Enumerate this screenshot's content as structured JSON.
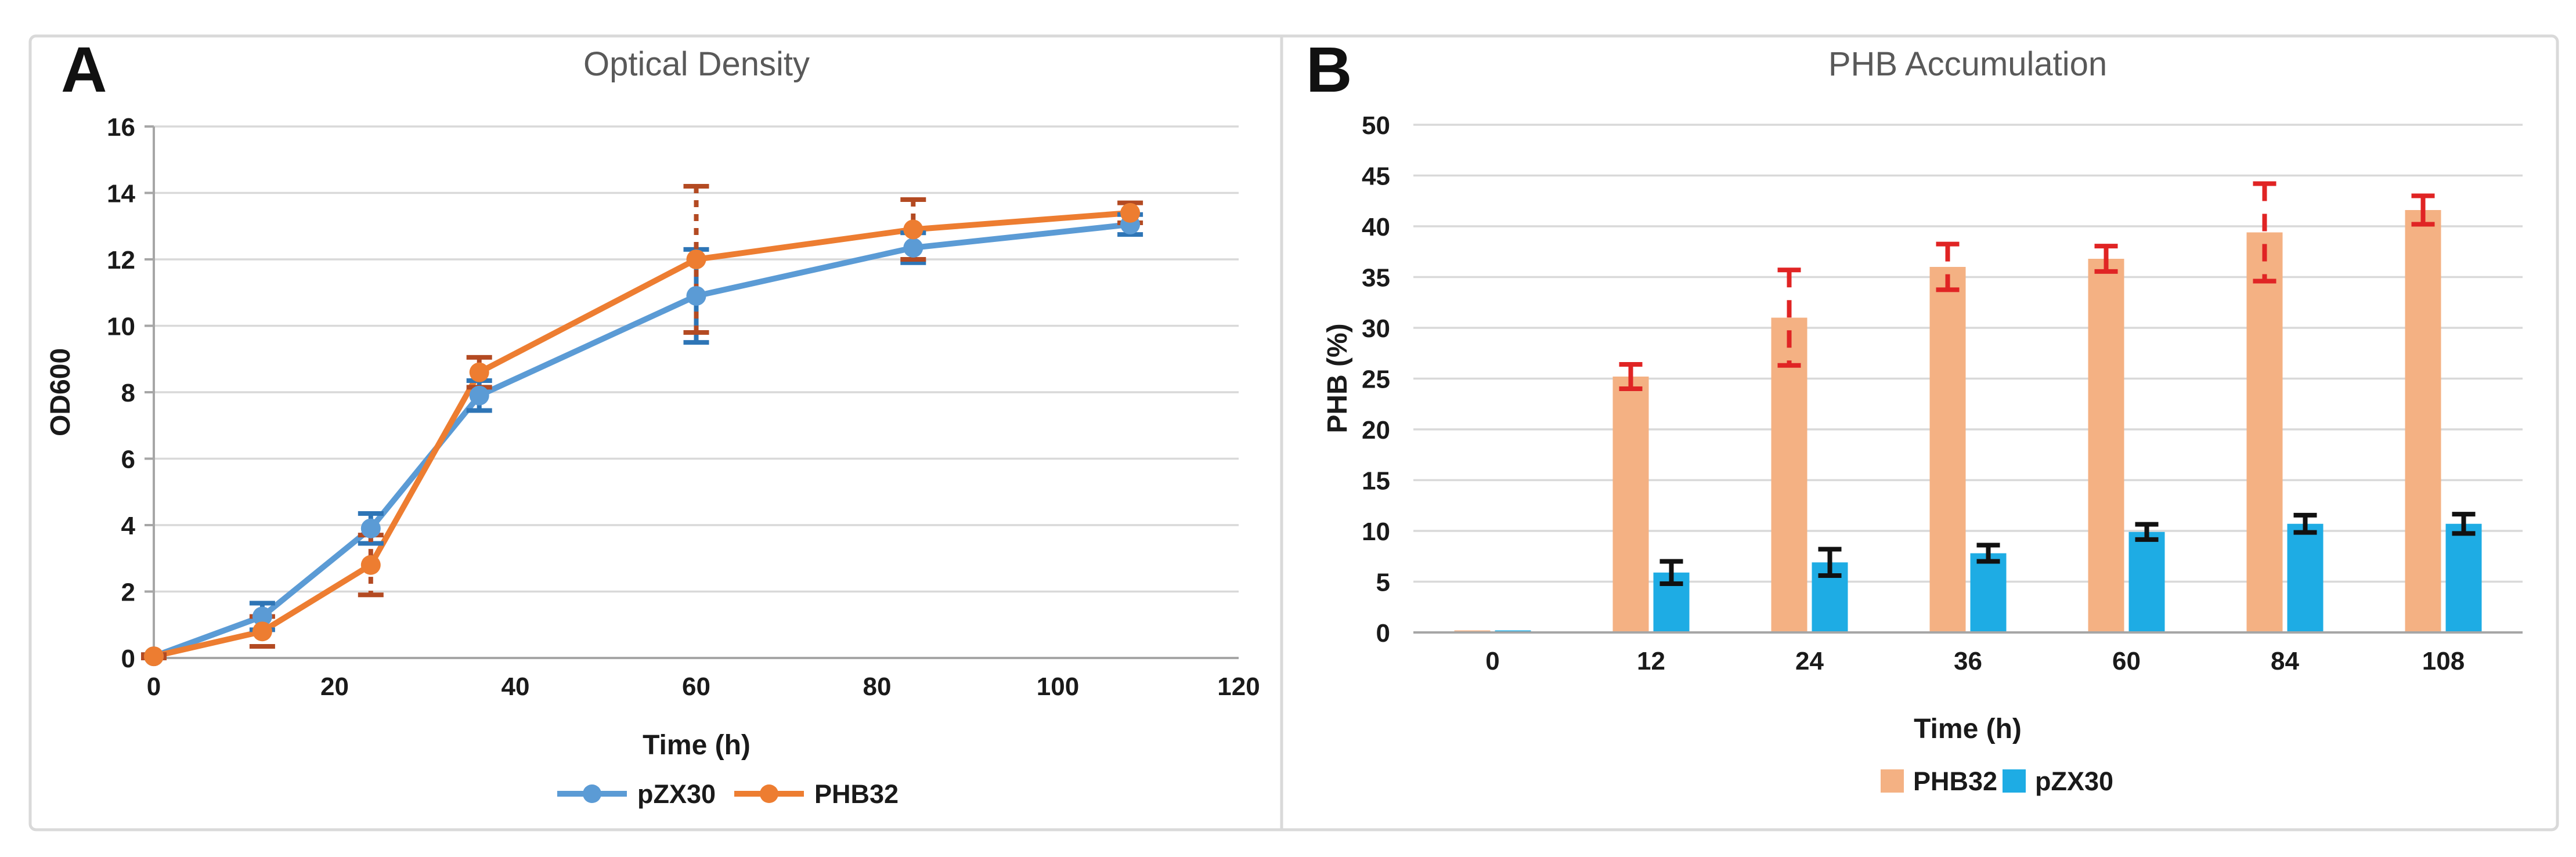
{
  "figure": {
    "panel_letters": [
      "A",
      "B"
    ],
    "border_color": "#d9d9d9",
    "divider_color": "#d9d9d9",
    "background": "#ffffff",
    "grid_color": "#d9d9d9",
    "axis_line_color": "#a6a6a6",
    "title_color": "#595959"
  },
  "chart_data": [
    {
      "type": "line",
      "title": "Optical Density",
      "xlabel": "Time (h)",
      "ylabel": "OD600",
      "x": [
        0,
        12,
        24,
        36,
        60,
        84,
        108
      ],
      "xlim": [
        0,
        120
      ],
      "ylim": [
        0,
        16
      ],
      "xticks": [
        0,
        20,
        40,
        60,
        80,
        100,
        120
      ],
      "yticks": [
        0,
        2,
        4,
        6,
        8,
        10,
        12,
        14,
        16
      ],
      "grid": true,
      "legend_position": "bottom",
      "series": [
        {
          "name": "pZX30",
          "color": "#5B9BD5",
          "marker": "circle",
          "values": [
            0.05,
            1.25,
            3.9,
            7.9,
            10.9,
            12.35,
            13.05
          ],
          "error": [
            0.05,
            0.4,
            0.45,
            0.45,
            1.4,
            0.45,
            0.3
          ],
          "error_color": "#2E75B6",
          "error_style": "solid"
        },
        {
          "name": "PHB32",
          "color": "#ED7D31",
          "marker": "circle",
          "values": [
            0.05,
            0.8,
            2.8,
            8.6,
            12.0,
            12.9,
            13.4
          ],
          "error": [
            0.05,
            0.45,
            0.9,
            0.45,
            2.2,
            0.9,
            0.3
          ],
          "error_color": "#B34A22",
          "error_style": "dashed"
        }
      ]
    },
    {
      "type": "bar",
      "title": "PHB Accumulation",
      "xlabel": "Time (h)",
      "ylabel": "PHB (%)",
      "categories": [
        "0",
        "12",
        "24",
        "36",
        "60",
        "84",
        "108"
      ],
      "ylim": [
        0,
        50
      ],
      "yticks": [
        0,
        5,
        10,
        15,
        20,
        25,
        30,
        35,
        40,
        45,
        50
      ],
      "grid": true,
      "legend_position": "bottom",
      "series": [
        {
          "name": "PHB32",
          "color": "#F4B183",
          "values": [
            0.2,
            25.2,
            31.0,
            36.0,
            36.8,
            39.4,
            41.6
          ],
          "error": [
            0.1,
            1.2,
            4.7,
            2.25,
            1.25,
            4.8,
            1.4
          ],
          "error_color": "#E02424",
          "error_styles": [
            "solid",
            "solid",
            "dashed",
            "dashed",
            "solid",
            "dashed",
            "solid"
          ]
        },
        {
          "name": "pZX30",
          "color": "#1EACE4",
          "values": [
            0.2,
            5.9,
            6.9,
            7.8,
            9.9,
            10.7,
            10.7
          ],
          "error": [
            0.05,
            1.1,
            1.3,
            0.8,
            0.75,
            0.85,
            0.95
          ],
          "error_color": "#111111",
          "error_styles": [
            "solid",
            "solid",
            "solid",
            "solid",
            "solid",
            "solid",
            "solid"
          ]
        }
      ]
    }
  ]
}
